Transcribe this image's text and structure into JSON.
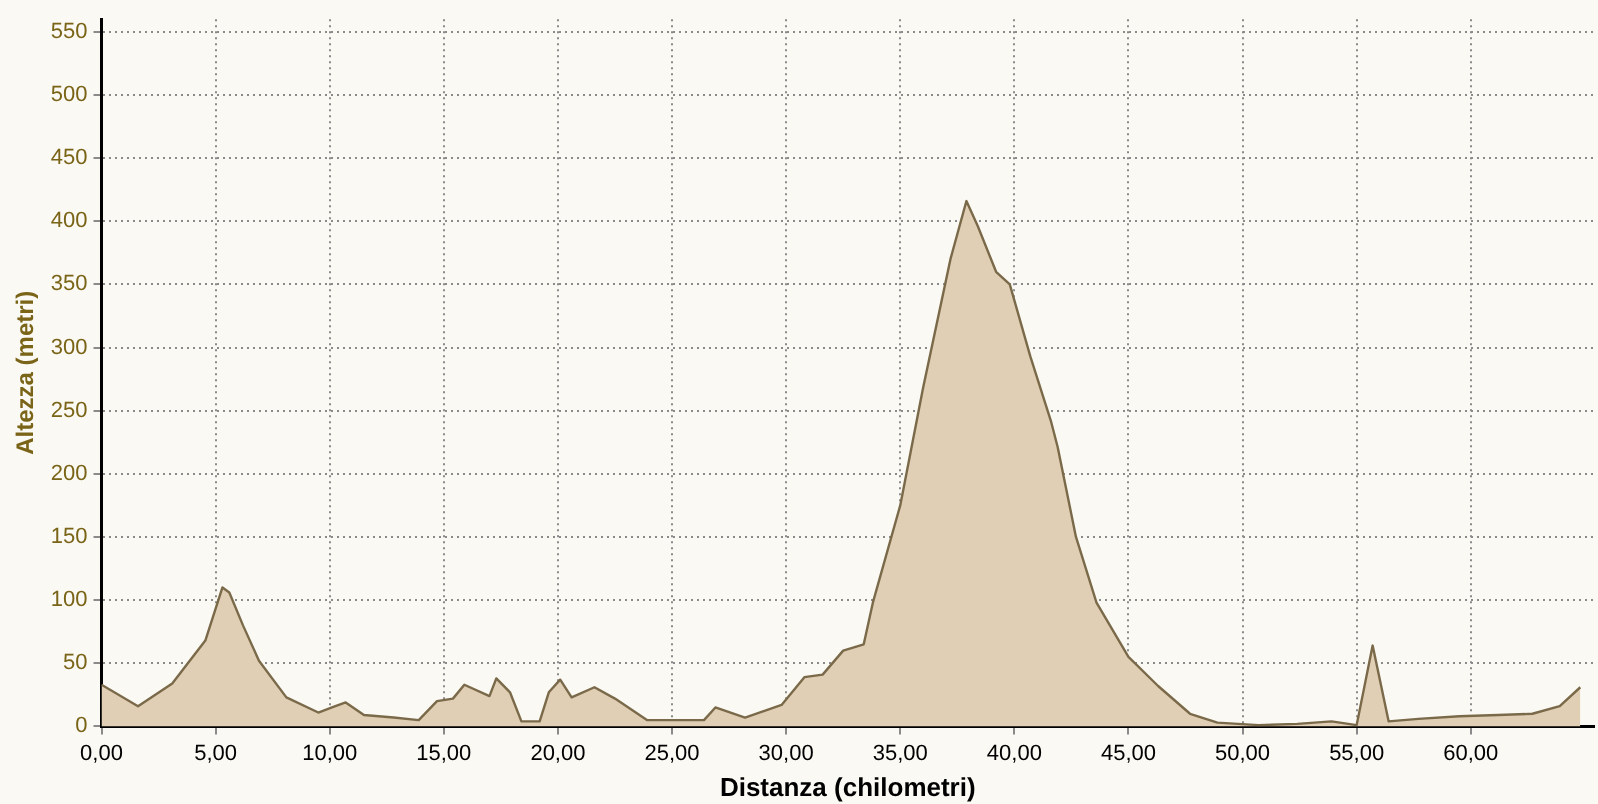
{
  "chart_data": {
    "type": "area",
    "xlabel": "Distanza (chilometri)",
    "ylabel": "Altezza (metri)",
    "x": [
      0,
      1.6,
      3.1,
      4.55,
      5.3,
      5.6,
      6.2,
      6.9,
      8.1,
      9.5,
      10.1,
      10.7,
      11.5,
      12.8,
      13.9,
      14.7,
      15.4,
      15.9,
      17.0,
      17.3,
      17.9,
      18.4,
      19.2,
      19.6,
      20.1,
      20.6,
      21.6,
      22.5,
      23.9,
      26.4,
      26.9,
      28.2,
      29.8,
      30.8,
      31.6,
      32.5,
      33.4,
      33.8,
      35.0,
      36.0,
      37.2,
      37.9,
      38.4,
      39.2,
      39.8,
      40.7,
      41.6,
      41.9,
      42.7,
      43.6,
      45.0,
      46.3,
      47.7,
      48.9,
      50.7,
      52.4,
      53.9,
      55.0,
      55.7,
      56.4,
      57.7,
      59.5,
      61.2,
      62.7,
      63.9,
      64.8
    ],
    "series": [
      {
        "color": "#7a6a4a",
        "values": [
          33,
          16,
          34,
          68,
          110,
          106,
          80,
          52,
          23,
          11,
          15,
          19,
          9,
          7,
          5,
          20,
          22,
          33,
          24,
          38,
          27,
          4,
          4,
          27,
          37,
          23,
          31,
          22,
          5,
          5,
          15,
          7,
          17,
          39,
          41,
          60,
          65,
          98,
          175,
          268,
          370,
          416,
          396,
          360,
          350,
          293,
          242,
          221,
          150,
          98,
          55,
          32,
          10,
          3,
          1,
          2,
          4,
          1,
          64,
          4,
          6,
          8,
          9,
          10,
          16,
          31
        ]
      }
    ],
    "xlim": [
      0,
      65.4
    ],
    "xticks": [
      {
        "value": 0,
        "label": "0,00"
      },
      {
        "value": 5,
        "label": "5,00"
      },
      {
        "value": 10,
        "label": "10,00"
      },
      {
        "value": 15,
        "label": "15,00"
      },
      {
        "value": 20,
        "label": "20,00"
      },
      {
        "value": 25,
        "label": "25,00"
      },
      {
        "value": 30,
        "label": "30,00"
      },
      {
        "value": 35,
        "label": "35,00"
      },
      {
        "value": 40,
        "label": "40,00"
      },
      {
        "value": 45,
        "label": "45,00"
      },
      {
        "value": 50,
        "label": "50,00"
      },
      {
        "value": 55,
        "label": "55,00"
      },
      {
        "value": 60,
        "label": "60,00"
      }
    ],
    "ylim": [
      0,
      560
    ],
    "yticks": [
      0,
      50,
      100,
      150,
      200,
      250,
      300,
      350,
      400,
      450,
      500,
      550
    ],
    "grid": true,
    "legend": false,
    "marker": "none",
    "line_style": "solid"
  }
}
